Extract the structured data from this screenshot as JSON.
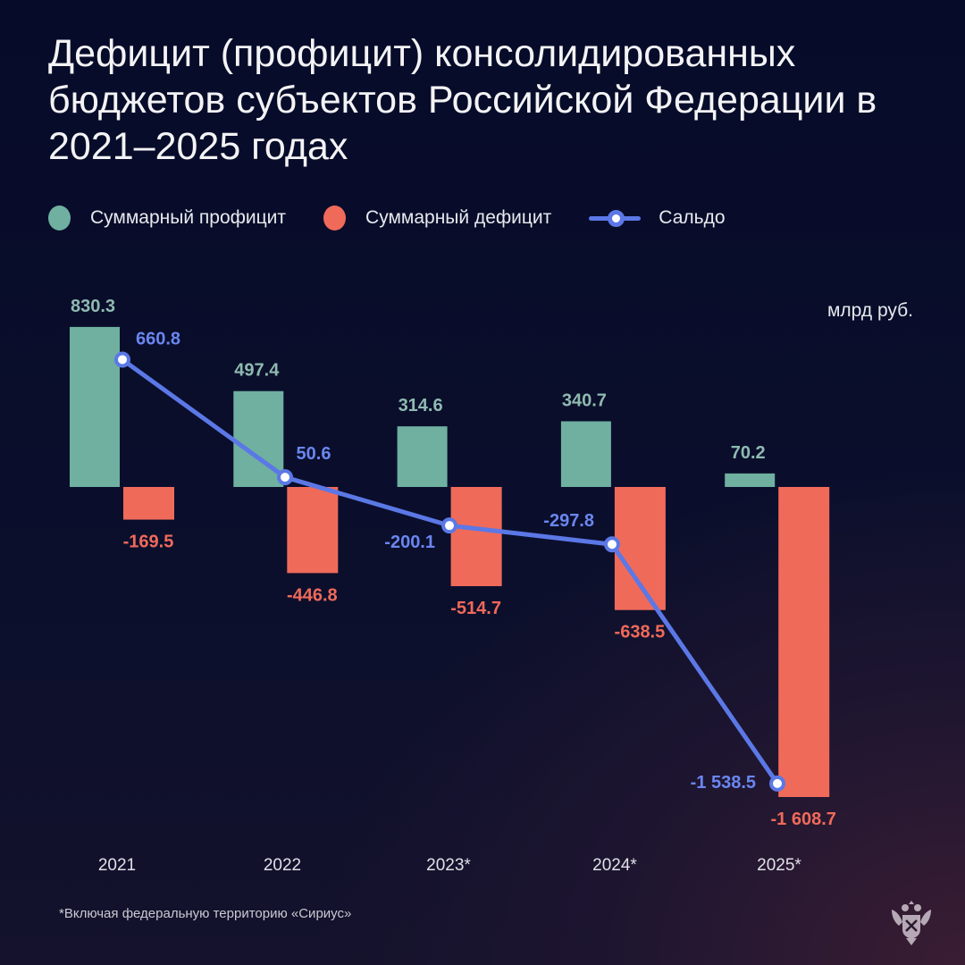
{
  "title": "Дефицит (профицит) консолидированных бюджетов субъектов Российской Федерации в 2021–2025 годах",
  "legend": {
    "surplus": "Суммарный профицит",
    "deficit": "Суммарный дефицит",
    "balance": "Сальдо"
  },
  "unit": "млрд руб.",
  "footnote": "*Включая федеральную территорию «Сириус»",
  "colors": {
    "surplus": "#6fb0a0",
    "deficit": "#f06a5a",
    "balance": "#5b78e6"
  },
  "chart_data": {
    "type": "bar",
    "categories": [
      "2021",
      "2022",
      "2023*",
      "2024*",
      "2025*"
    ],
    "series": [
      {
        "name": "Суммарный профицит",
        "values": [
          830.3,
          497.4,
          314.6,
          340.7,
          70.2
        ],
        "labels": [
          "830.3",
          "497.4",
          "314.6",
          "340.7",
          "70.2"
        ]
      },
      {
        "name": "Суммарный дефицит",
        "values": [
          -169.5,
          -446.8,
          -514.7,
          -638.5,
          -1608.7
        ],
        "labels": [
          "-169.5",
          "-446.8",
          "-514.7",
          "-638.5",
          "-1 608.7"
        ]
      },
      {
        "name": "Сальдо",
        "type": "line",
        "values": [
          660.8,
          50.6,
          -200.1,
          -297.8,
          -1538.5
        ],
        "labels": [
          "660.8",
          "50.6",
          "-200.1",
          "-297.8",
          "-1 538.5"
        ]
      }
    ],
    "grid": false,
    "legend_position": "top-left"
  }
}
